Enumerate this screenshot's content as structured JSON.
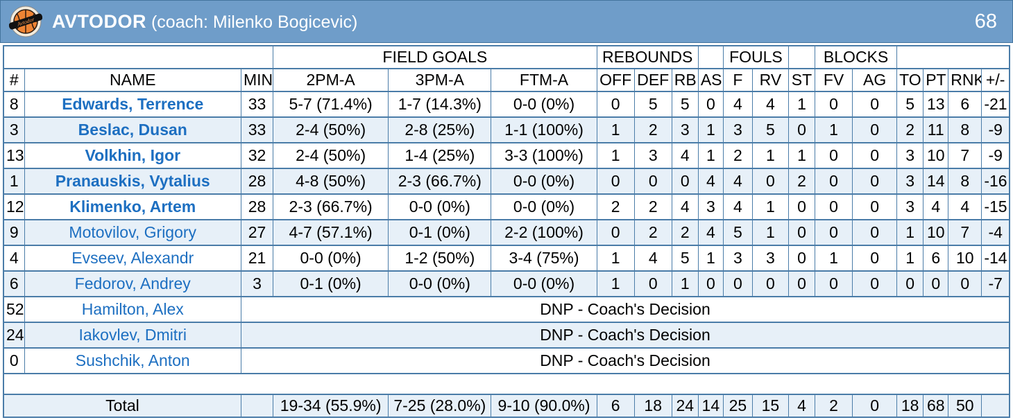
{
  "team": {
    "name": "AVTODOR",
    "coach_label": "(coach: Milenko Bogicevic)",
    "score": "68",
    "logo_text": "Avtodor"
  },
  "colors": {
    "band_blue": "#6f9dc9",
    "grid_blue": "#4a7ca8",
    "row_alt_blue": "#e7f0f8",
    "name_link_blue": "#1d6fc1",
    "logo_orange": "#ee8434"
  },
  "table": {
    "group_headers": {
      "field_goals": "FIELD GOALS",
      "rebounds": "REBOUNDS",
      "fouls": "FOULS",
      "blocks": "BLOCKS"
    },
    "columns": [
      "#",
      "NAME",
      "MIN",
      "2PM-A",
      "3PM-A",
      "FTM-A",
      "OFF",
      "DEF",
      "RB",
      "AS",
      "F",
      "RV",
      "ST",
      "FV",
      "AG",
      "TO",
      "PT",
      "RNK",
      "+/-"
    ],
    "dnp_text": "DNP - Coach's Decision",
    "players": [
      {
        "num": "8",
        "name": "Edwards, Terrence",
        "starter": true,
        "stats": [
          "33",
          "5-7 (71.4%)",
          "1-7 (14.3%)",
          "0-0 (0%)",
          "0",
          "5",
          "5",
          "0",
          "4",
          "4",
          "1",
          "0",
          "0",
          "5",
          "13",
          "6",
          "-21"
        ]
      },
      {
        "num": "3",
        "name": "Beslac, Dusan",
        "starter": true,
        "stats": [
          "33",
          "2-4 (50%)",
          "2-8 (25%)",
          "1-1 (100%)",
          "1",
          "2",
          "3",
          "1",
          "3",
          "5",
          "0",
          "1",
          "0",
          "2",
          "11",
          "8",
          "-9"
        ]
      },
      {
        "num": "13",
        "name": "Volkhin, Igor",
        "starter": true,
        "stats": [
          "32",
          "2-4 (50%)",
          "1-4 (25%)",
          "3-3 (100%)",
          "1",
          "3",
          "4",
          "1",
          "2",
          "1",
          "1",
          "0",
          "0",
          "3",
          "10",
          "7",
          "-9"
        ]
      },
      {
        "num": "1",
        "name": "Pranauskis, Vytalius",
        "starter": true,
        "stats": [
          "28",
          "4-8 (50%)",
          "2-3 (66.7%)",
          "0-0 (0%)",
          "0",
          "0",
          "0",
          "4",
          "4",
          "0",
          "2",
          "0",
          "0",
          "3",
          "14",
          "8",
          "-16"
        ]
      },
      {
        "num": "12",
        "name": "Klimenko, Artem",
        "starter": true,
        "stats": [
          "28",
          "2-3 (66.7%)",
          "0-0 (0%)",
          "0-0 (0%)",
          "2",
          "2",
          "4",
          "3",
          "4",
          "1",
          "0",
          "0",
          "0",
          "3",
          "4",
          "4",
          "-15"
        ]
      },
      {
        "num": "9",
        "name": "Motovilov, Grigory",
        "starter": false,
        "stats": [
          "27",
          "4-7 (57.1%)",
          "0-1 (0%)",
          "2-2 (100%)",
          "0",
          "2",
          "2",
          "4",
          "5",
          "1",
          "0",
          "0",
          "0",
          "1",
          "10",
          "7",
          "-4"
        ]
      },
      {
        "num": "4",
        "name": "Evseev, Alexandr",
        "starter": false,
        "stats": [
          "21",
          "0-0 (0%)",
          "1-2 (50%)",
          "3-4 (75%)",
          "1",
          "4",
          "5",
          "1",
          "3",
          "3",
          "0",
          "1",
          "0",
          "1",
          "6",
          "10",
          "-14"
        ]
      },
      {
        "num": "6",
        "name": "Fedorov, Andrey",
        "starter": false,
        "stats": [
          "3",
          "0-1 (0%)",
          "0-0 (0%)",
          "0-0 (0%)",
          "1",
          "0",
          "1",
          "0",
          "0",
          "0",
          "0",
          "0",
          "0",
          "0",
          "0",
          "0",
          "-7"
        ]
      },
      {
        "num": "52",
        "name": "Hamilton, Alex",
        "starter": false,
        "dnp": true
      },
      {
        "num": "24",
        "name": "Iakovlev, Dmitri",
        "starter": false,
        "dnp": true
      },
      {
        "num": "0",
        "name": "Sushchik, Anton",
        "starter": false,
        "dnp": true
      }
    ],
    "total": {
      "label": "Total",
      "stats": [
        "19-34 (55.9%)",
        "7-25 (28.0%)",
        "9-10 (90.0%)",
        "6",
        "18",
        "24",
        "14",
        "25",
        "15",
        "4",
        "2",
        "0",
        "18",
        "68",
        "50",
        ""
      ]
    }
  }
}
